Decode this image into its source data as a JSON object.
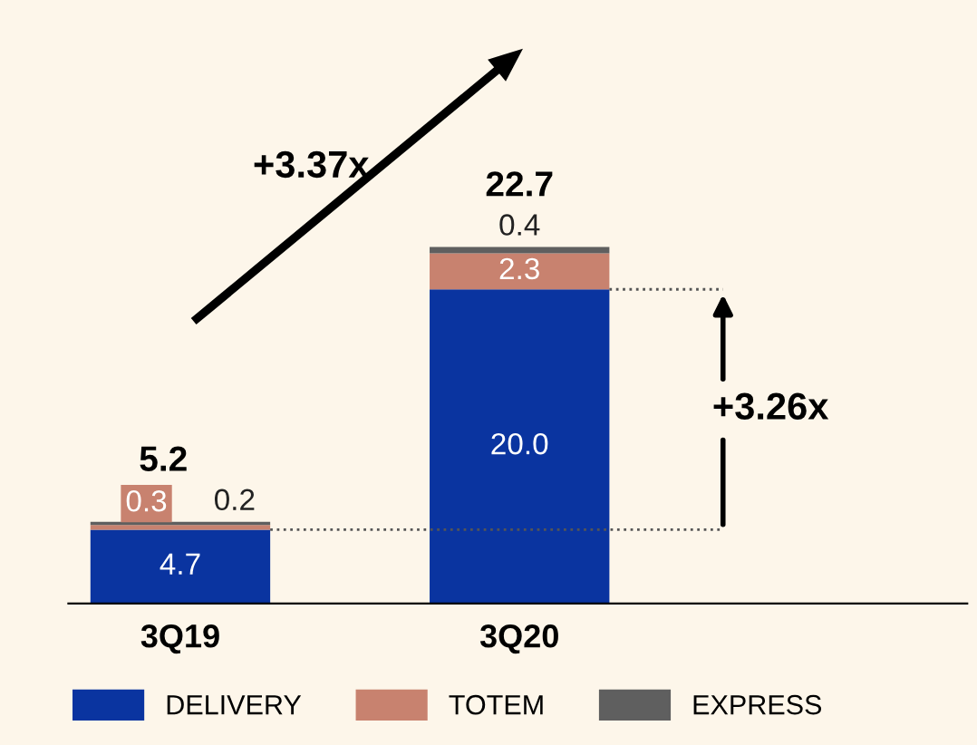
{
  "chart_data": {
    "type": "bar",
    "stacked": true,
    "categories": [
      "3Q19",
      "3Q20"
    ],
    "series": [
      {
        "name": "DELIVERY",
        "color": "#0a34a0",
        "values": [
          4.7,
          20.0
        ],
        "value_labels": [
          "4.7",
          "20.0"
        ]
      },
      {
        "name": "TOTEM",
        "color": "#c8826f",
        "values": [
          0.3,
          2.3
        ],
        "value_labels": [
          "0.3",
          "2.3"
        ]
      },
      {
        "name": "EXPRESS",
        "color": "#5f5f5f",
        "values": [
          0.2,
          0.4
        ],
        "value_labels": [
          "0.2",
          "0.4"
        ]
      }
    ],
    "totals": [
      "5.2",
      "22.7"
    ],
    "tick_labels": "x",
    "legend": "bottom",
    "ref_lines": [
      {
        "axis": "y",
        "value": 4.7,
        "line_style": "dotted",
        "color": "#555555"
      },
      {
        "axis": "y",
        "value": 20.0,
        "line_style": "dotted",
        "color": "#555555"
      }
    ],
    "annotations": [
      "+3.37x",
      "+3.26x"
    ]
  }
}
